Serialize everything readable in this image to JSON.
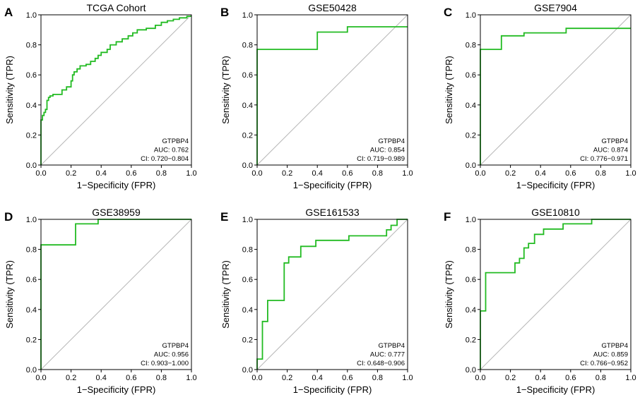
{
  "figure": {
    "xlabel": "1−Specificity (FPR)",
    "ylabel": "Sensitivity (TPR)"
  },
  "chart_data": [
    {
      "type": "line",
      "panel": "A",
      "title": "TCGA Cohort",
      "xlabel": "1−Specificity (FPR)",
      "ylabel": "Sensitivity (TPR)",
      "xlim": [
        0,
        1
      ],
      "ylim": [
        0,
        1
      ],
      "xticks": [
        "0.0",
        "0.2",
        "0.4",
        "0.6",
        "0.8",
        "1.0"
      ],
      "yticks": [
        "0.0",
        "0.2",
        "0.4",
        "0.6",
        "0.8",
        "1.0"
      ],
      "reference_line": [
        [
          0,
          0
        ],
        [
          1,
          1
        ]
      ],
      "annotation": [
        "GTPBP4",
        "AUC: 0.762",
        "CI: 0.720−0.804"
      ],
      "series": [
        {
          "name": "GTPBP4",
          "color": "#22bb22",
          "points": [
            [
              0,
              0
            ],
            [
              0,
              0.3
            ],
            [
              0.01,
              0.3
            ],
            [
              0.01,
              0.33
            ],
            [
              0.02,
              0.33
            ],
            [
              0.02,
              0.35
            ],
            [
              0.03,
              0.35
            ],
            [
              0.03,
              0.37
            ],
            [
              0.04,
              0.37
            ],
            [
              0.04,
              0.43
            ],
            [
              0.05,
              0.43
            ],
            [
              0.05,
              0.45
            ],
            [
              0.06,
              0.45
            ],
            [
              0.06,
              0.46
            ],
            [
              0.08,
              0.46
            ],
            [
              0.08,
              0.47
            ],
            [
              0.14,
              0.47
            ],
            [
              0.14,
              0.5
            ],
            [
              0.17,
              0.5
            ],
            [
              0.17,
              0.52
            ],
            [
              0.2,
              0.52
            ],
            [
              0.2,
              0.56
            ],
            [
              0.21,
              0.56
            ],
            [
              0.21,
              0.6
            ],
            [
              0.22,
              0.6
            ],
            [
              0.22,
              0.62
            ],
            [
              0.24,
              0.62
            ],
            [
              0.24,
              0.64
            ],
            [
              0.26,
              0.64
            ],
            [
              0.26,
              0.66
            ],
            [
              0.3,
              0.66
            ],
            [
              0.3,
              0.67
            ],
            [
              0.33,
              0.67
            ],
            [
              0.33,
              0.69
            ],
            [
              0.36,
              0.69
            ],
            [
              0.36,
              0.71
            ],
            [
              0.38,
              0.71
            ],
            [
              0.38,
              0.73
            ],
            [
              0.4,
              0.73
            ],
            [
              0.4,
              0.75
            ],
            [
              0.44,
              0.75
            ],
            [
              0.44,
              0.77
            ],
            [
              0.46,
              0.77
            ],
            [
              0.46,
              0.8
            ],
            [
              0.5,
              0.8
            ],
            [
              0.5,
              0.82
            ],
            [
              0.54,
              0.82
            ],
            [
              0.54,
              0.84
            ],
            [
              0.58,
              0.84
            ],
            [
              0.58,
              0.86
            ],
            [
              0.61,
              0.86
            ],
            [
              0.61,
              0.88
            ],
            [
              0.64,
              0.88
            ],
            [
              0.64,
              0.9
            ],
            [
              0.7,
              0.9
            ],
            [
              0.7,
              0.91
            ],
            [
              0.76,
              0.91
            ],
            [
              0.76,
              0.93
            ],
            [
              0.8,
              0.93
            ],
            [
              0.8,
              0.95
            ],
            [
              0.84,
              0.95
            ],
            [
              0.84,
              0.96
            ],
            [
              0.88,
              0.96
            ],
            [
              0.88,
              0.97
            ],
            [
              0.92,
              0.97
            ],
            [
              0.92,
              0.98
            ],
            [
              0.97,
              0.98
            ],
            [
              0.97,
              0.99
            ],
            [
              1.0,
              0.99
            ]
          ]
        }
      ]
    },
    {
      "type": "line",
      "panel": "B",
      "title": "GSE50428",
      "xlabel": "1−Specificity (FPR)",
      "ylabel": "Sensitivity (TPR)",
      "xlim": [
        0,
        1
      ],
      "ylim": [
        0,
        1
      ],
      "xticks": [
        "0.0",
        "0.2",
        "0.4",
        "0.6",
        "0.8",
        "1.0"
      ],
      "yticks": [
        "0.0",
        "0.2",
        "0.4",
        "0.6",
        "0.8",
        "1.0"
      ],
      "reference_line": [
        [
          0,
          0
        ],
        [
          1,
          1
        ]
      ],
      "annotation": [
        "GTPBP4",
        "AUC: 0.854",
        "CI: 0.719−0.989"
      ],
      "series": [
        {
          "name": "GTPBP4",
          "color": "#22bb22",
          "points": [
            [
              0,
              0
            ],
            [
              0,
              0.77
            ],
            [
              0.4,
              0.77
            ],
            [
              0.4,
              0.885
            ],
            [
              0.6,
              0.885
            ],
            [
              0.6,
              0.92
            ],
            [
              1.0,
              0.92
            ]
          ]
        }
      ]
    },
    {
      "type": "line",
      "panel": "C",
      "title": "GSE7904",
      "xlabel": "1−Specificity (FPR)",
      "ylabel": "Sensitivity (TPR)",
      "xlim": [
        0,
        1
      ],
      "ylim": [
        0,
        1
      ],
      "xticks": [
        "0.0",
        "0.2",
        "0.4",
        "0.6",
        "0.8",
        "1.0"
      ],
      "yticks": [
        "0.0",
        "0.2",
        "0.4",
        "0.6",
        "0.8",
        "1.0"
      ],
      "reference_line": [
        [
          0,
          0
        ],
        [
          1,
          1
        ]
      ],
      "annotation": [
        "GTPBP4",
        "AUC: 0.874",
        "CI: 0.776−0.971"
      ],
      "series": [
        {
          "name": "GTPBP4",
          "color": "#22bb22",
          "points": [
            [
              0,
              0
            ],
            [
              0,
              0.77
            ],
            [
              0.14,
              0.77
            ],
            [
              0.14,
              0.86
            ],
            [
              0.29,
              0.86
            ],
            [
              0.29,
              0.88
            ],
            [
              0.57,
              0.88
            ],
            [
              0.57,
              0.91
            ],
            [
              1.0,
              0.91
            ]
          ]
        }
      ]
    },
    {
      "type": "line",
      "panel": "D",
      "title": "GSE38959",
      "xlabel": "1−Specificity (FPR)",
      "ylabel": "Sensitivity (TPR)",
      "xlim": [
        0,
        1
      ],
      "ylim": [
        0,
        1
      ],
      "xticks": [
        "0.0",
        "0.2",
        "0.4",
        "0.6",
        "0.8",
        "1.0"
      ],
      "yticks": [
        "0.0",
        "0.2",
        "0.4",
        "0.6",
        "0.8",
        "1.0"
      ],
      "reference_line": [
        [
          0,
          0
        ],
        [
          1,
          1
        ]
      ],
      "annotation": [
        "GTPBP4",
        "AUC: 0.956",
        "CI: 0.903−1.000"
      ],
      "series": [
        {
          "name": "GTPBP4",
          "color": "#22bb22",
          "points": [
            [
              0,
              0
            ],
            [
              0,
              0.83
            ],
            [
              0.23,
              0.83
            ],
            [
              0.23,
              0.97
            ],
            [
              0.38,
              0.97
            ],
            [
              0.38,
              1.0
            ],
            [
              1.0,
              1.0
            ]
          ]
        }
      ]
    },
    {
      "type": "line",
      "panel": "E",
      "title": "GSE161533",
      "xlabel": "1−Specificity (FPR)",
      "ylabel": "Sensitivity (TPR)",
      "xlim": [
        0,
        1
      ],
      "ylim": [
        0,
        1
      ],
      "xticks": [
        "0.0",
        "0.2",
        "0.4",
        "0.6",
        "0.8",
        "1.0"
      ],
      "yticks": [
        "0.0",
        "0.2",
        "0.4",
        "0.6",
        "0.8",
        "1.0"
      ],
      "reference_line": [
        [
          0,
          0
        ],
        [
          1,
          1
        ]
      ],
      "annotation": [
        "GTPBP4",
        "AUC: 0.777",
        "CI: 0.648−0.906"
      ],
      "series": [
        {
          "name": "GTPBP4",
          "color": "#22bb22",
          "points": [
            [
              0,
              0
            ],
            [
              0,
              0.07
            ],
            [
              0.035,
              0.07
            ],
            [
              0.035,
              0.32
            ],
            [
              0.07,
              0.32
            ],
            [
              0.07,
              0.46
            ],
            [
              0.18,
              0.46
            ],
            [
              0.18,
              0.71
            ],
            [
              0.21,
              0.71
            ],
            [
              0.21,
              0.75
            ],
            [
              0.29,
              0.75
            ],
            [
              0.29,
              0.82
            ],
            [
              0.39,
              0.82
            ],
            [
              0.39,
              0.86
            ],
            [
              0.61,
              0.86
            ],
            [
              0.61,
              0.89
            ],
            [
              0.86,
              0.89
            ],
            [
              0.86,
              0.93
            ],
            [
              0.89,
              0.93
            ],
            [
              0.89,
              0.96
            ],
            [
              0.93,
              0.96
            ],
            [
              0.93,
              1.0
            ],
            [
              1.0,
              1.0
            ]
          ]
        }
      ]
    },
    {
      "type": "line",
      "panel": "F",
      "title": "GSE10810",
      "xlabel": "1−Specificity (FPR)",
      "ylabel": "Sensitivity (TPR)",
      "xlim": [
        0,
        1
      ],
      "ylim": [
        0,
        1
      ],
      "xticks": [
        "0.0",
        "0.2",
        "0.4",
        "0.6",
        "0.8",
        "1.0"
      ],
      "yticks": [
        "0.0",
        "0.2",
        "0.4",
        "0.6",
        "0.8",
        "1.0"
      ],
      "reference_line": [
        [
          0,
          0
        ],
        [
          1,
          1
        ]
      ],
      "annotation": [
        "GTPBP4",
        "AUC: 0.859",
        "CI: 0.766−0.952"
      ],
      "series": [
        {
          "name": "GTPBP4",
          "color": "#22bb22",
          "points": [
            [
              0,
              0
            ],
            [
              0,
              0.39
            ],
            [
              0.035,
              0.39
            ],
            [
              0.035,
              0.645
            ],
            [
              0.23,
              0.645
            ],
            [
              0.23,
              0.71
            ],
            [
              0.26,
              0.71
            ],
            [
              0.26,
              0.74
            ],
            [
              0.29,
              0.74
            ],
            [
              0.29,
              0.81
            ],
            [
              0.32,
              0.81
            ],
            [
              0.32,
              0.84
            ],
            [
              0.36,
              0.84
            ],
            [
              0.36,
              0.9
            ],
            [
              0.42,
              0.9
            ],
            [
              0.42,
              0.935
            ],
            [
              0.55,
              0.935
            ],
            [
              0.55,
              0.97
            ],
            [
              0.74,
              0.97
            ],
            [
              0.74,
              1.0
            ],
            [
              1.0,
              1.0
            ]
          ]
        }
      ]
    }
  ]
}
